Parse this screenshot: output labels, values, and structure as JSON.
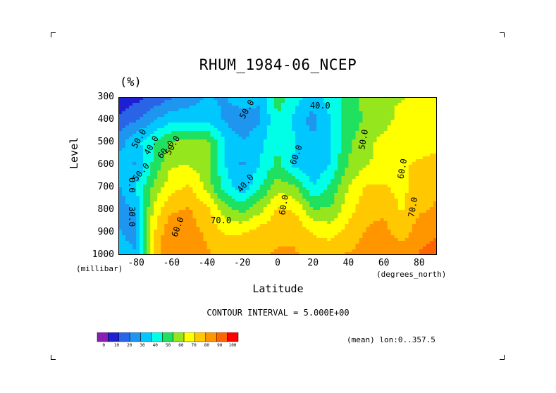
{
  "chart_data": {
    "type": "heatmap",
    "title": "RHUM_1984-06_NCEP",
    "units": "(%)",
    "xlabel": "Latitude",
    "ylabel": "Level",
    "x_unit": "(degrees_north)",
    "y_unit": "(millibar)",
    "xlim": [
      -90,
      90
    ],
    "ylim": [
      300,
      1000
    ],
    "y_inverted": true,
    "x_ticks": [
      "-80",
      "-60",
      "-40",
      "-20",
      "0",
      "20",
      "40",
      "60",
      "80"
    ],
    "y_ticks": [
      "300",
      "400",
      "500",
      "600",
      "700",
      "800",
      "900",
      "1000"
    ],
    "x": [
      -90,
      -80,
      -70,
      -60,
      -50,
      -40,
      -30,
      -20,
      -10,
      0,
      10,
      20,
      30,
      40,
      50,
      60,
      70,
      80,
      90
    ],
    "y": [
      300,
      400,
      500,
      600,
      700,
      800,
      900,
      1000
    ],
    "z": [
      [
        5,
        10,
        15,
        20,
        25,
        30,
        28,
        35,
        30,
        50,
        40,
        35,
        40,
        50,
        58,
        62,
        62,
        65,
        65
      ],
      [
        15,
        20,
        28,
        35,
        35,
        35,
        28,
        22,
        28,
        45,
        35,
        25,
        38,
        50,
        55,
        60,
        65,
        68,
        68
      ],
      [
        25,
        35,
        45,
        55,
        57,
        57,
        38,
        30,
        35,
        45,
        38,
        32,
        38,
        52,
        60,
        65,
        65,
        68,
        70
      ],
      [
        35,
        28,
        48,
        62,
        62,
        58,
        38,
        28,
        38,
        48,
        35,
        30,
        38,
        55,
        62,
        65,
        70,
        72,
        72
      ],
      [
        28,
        38,
        56,
        68,
        72,
        60,
        42,
        32,
        45,
        60,
        55,
        38,
        48,
        62,
        72,
        72,
        68,
        76,
        78
      ],
      [
        25,
        30,
        65,
        78,
        80,
        74,
        58,
        52,
        60,
        72,
        70,
        55,
        55,
        68,
        76,
        78,
        70,
        78,
        80
      ],
      [
        30,
        25,
        70,
        88,
        82,
        78,
        70,
        70,
        75,
        78,
        78,
        70,
        68,
        74,
        80,
        82,
        75,
        84,
        86
      ],
      [
        35,
        30,
        75,
        86,
        84,
        80,
        78,
        78,
        78,
        80,
        80,
        76,
        76,
        80,
        82,
        85,
        84,
        88,
        92
      ]
    ],
    "contour_interval_text": "CONTOUR INTERVAL = 5.000E+00",
    "contour_labels": [
      "50.0",
      "40.0",
      "50.0",
      "40.0",
      "50.0",
      "60.0",
      "60.0",
      "40.0",
      "50.0",
      "60.0",
      "70.0",
      "60.0",
      "70.0",
      "30.0",
      "0.0",
      "50.0",
      "60.0"
    ],
    "colorbar": {
      "colors": [
        "#8a1eb4",
        "#1e1ed2",
        "#2a64e6",
        "#1e96f0",
        "#00c8ff",
        "#00ffe6",
        "#20e060",
        "#96e61e",
        "#ffff00",
        "#ffc800",
        "#ff9600",
        "#ff6400",
        "#ff0000"
      ],
      "labels": [
        "0",
        "10",
        "20",
        "30",
        "40",
        "50",
        "60",
        "70",
        "80",
        "90",
        "100"
      ]
    },
    "annotation": "(mean) lon:0..357.5"
  }
}
